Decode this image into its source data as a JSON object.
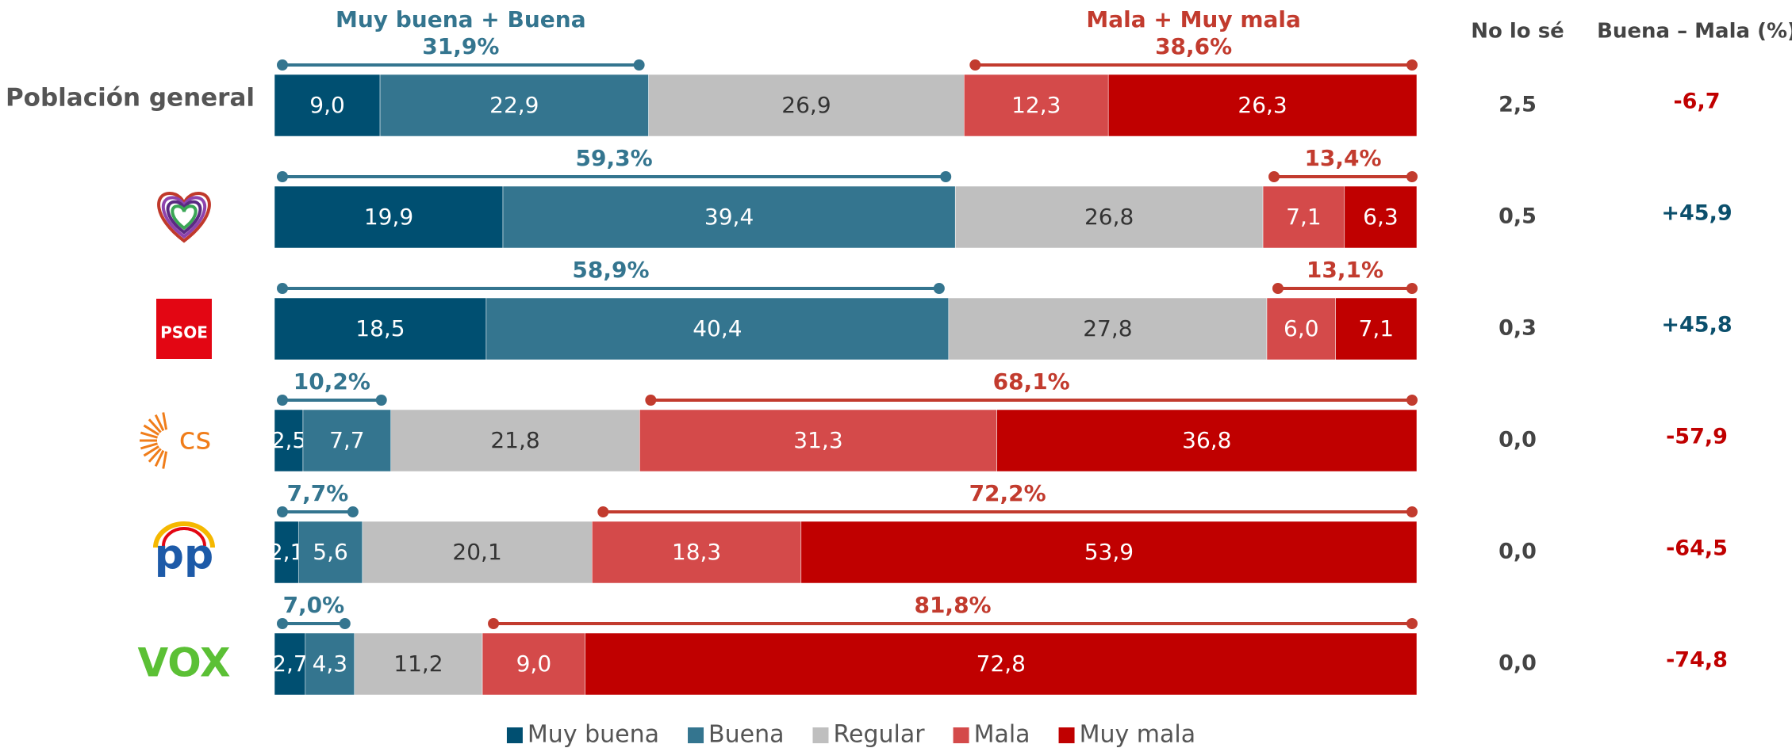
{
  "chart_data": {
    "type": "bar",
    "horizontal": true,
    "stacked": true,
    "categories": [
      "Población general",
      null,
      "PSOE",
      "cs",
      "pp",
      "VOX"
    ],
    "series": [
      {
        "name": "Muy buena",
        "color": "#004f71",
        "values": [
          9.0,
          19.9,
          18.5,
          2.5,
          2.1,
          2.7
        ],
        "value_labels": [
          "9,0",
          "19,9",
          "18,5",
          "2,5",
          "2,1",
          "2,7"
        ]
      },
      {
        "name": "Buena",
        "color": "#34758f",
        "values": [
          22.9,
          39.4,
          40.4,
          7.7,
          5.6,
          4.3
        ],
        "value_labels": [
          "22,9",
          "39,4",
          "40,4",
          "7,7",
          "5,6",
          "4,3"
        ]
      },
      {
        "name": "Regular",
        "color": "#bfbfbf",
        "values": [
          26.9,
          26.8,
          27.8,
          21.8,
          20.1,
          11.2
        ],
        "value_labels": [
          "26,9",
          "26,8",
          "27,8",
          "21,8",
          "20,1",
          "11,2"
        ]
      },
      {
        "name": "Mala",
        "color": "#d44a4a",
        "values": [
          12.3,
          7.1,
          6.0,
          31.3,
          18.3,
          9.0
        ],
        "value_labels": [
          "12,3",
          "7,1",
          "6,0",
          "31,3",
          "18,3",
          "9,0"
        ]
      },
      {
        "name": "Muy mala",
        "color": "#c00000",
        "values": [
          26.3,
          6.3,
          7.1,
          36.8,
          53.9,
          72.8
        ],
        "value_labels": [
          "26,3",
          "6,3",
          "7,1",
          "36,8",
          "53,9",
          "72,8"
        ]
      }
    ],
    "groups": [
      {
        "name": "Muy buena + Buena",
        "color": "#34758f",
        "values": [
          31.9,
          59.3,
          58.9,
          10.2,
          7.7,
          7.0
        ],
        "value_labels": [
          "31,9%",
          "59,3%",
          "58,9%",
          "10,2%",
          "7,7%",
          "7,0%"
        ]
      },
      {
        "name": "Mala + Muy mala",
        "color": "#c23b2e",
        "values": [
          38.6,
          13.4,
          13.1,
          68.1,
          72.2,
          81.8
        ],
        "value_labels": [
          "38,6%",
          "13,4%",
          "13,1%",
          "68,1%",
          "72,2%",
          "81,8%"
        ]
      }
    ],
    "columns": [
      {
        "name": "No lo sé",
        "color": "#444444",
        "values": [
          2.5,
          0.5,
          0.3,
          0.0,
          0.0,
          0.0
        ],
        "value_labels": [
          "2,5",
          "0,5",
          "0,3",
          "0,0",
          "0,0",
          "0,0"
        ]
      },
      {
        "name": "Buena – Mala (%)",
        "positive_color": "#0b4f6c",
        "negative_color": "#c00000",
        "values": [
          -6.7,
          45.9,
          45.8,
          -57.9,
          -64.5,
          -74.8
        ],
        "value_labels": [
          "-6,7",
          "+45,9",
          "+45,8",
          "-57,9",
          "-64,5",
          "-74,8"
        ]
      }
    ],
    "legend": "bottom"
  }
}
